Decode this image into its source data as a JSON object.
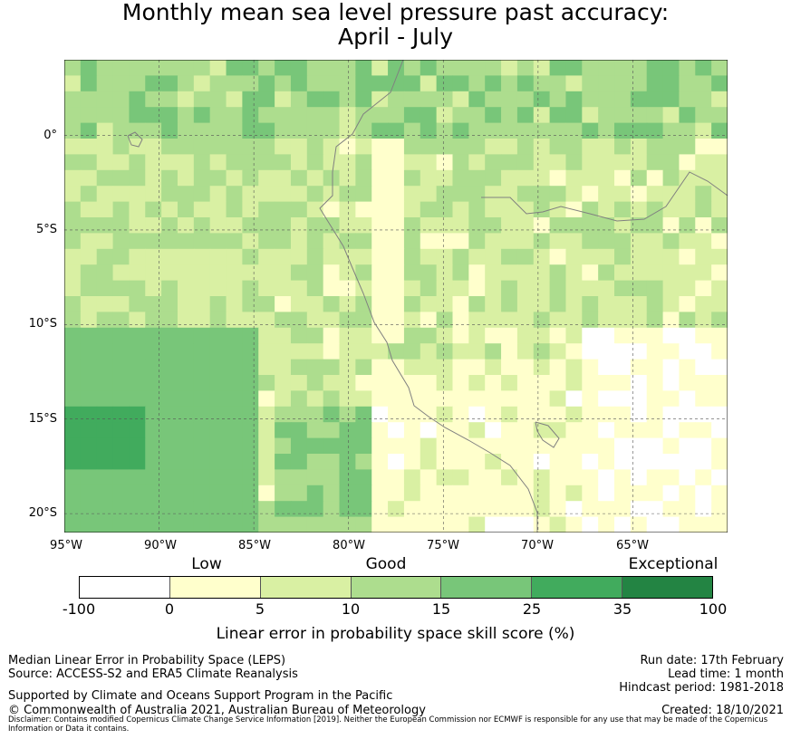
{
  "title_line_1": "Monthly mean sea level pressure past accuracy:",
  "title_line_2": "April - July",
  "map": {
    "lat_labels": [
      "0°",
      "5°S",
      "10°S",
      "15°S",
      "20°S"
    ],
    "lat_values": [
      0,
      -5,
      -10,
      -15,
      -20
    ],
    "lon_labels": [
      "95°W",
      "90°W",
      "85°W",
      "80°W",
      "75°W",
      "70°W",
      "65°W"
    ],
    "lon_values": [
      -95,
      -90,
      -85,
      -80,
      -75,
      -70,
      -65
    ],
    "extent": {
      "lon_min": -95,
      "lon_max": -60,
      "lat_min": -21,
      "lat_max": 4
    },
    "grid": "dashed",
    "coastline_color": "#808080"
  },
  "colorbar": {
    "categories": {
      "low": "Low",
      "good": "Good",
      "exceptional": "Exceptional"
    },
    "ticks": [
      "-100",
      "0",
      "5",
      "10",
      "15",
      "25",
      "35",
      "100"
    ],
    "colors": [
      "#ffffff",
      "#ffffcc",
      "#d9f0a3",
      "#addd8e",
      "#78c679",
      "#41ab5d",
      "#238443"
    ],
    "label": "Linear error in probability space skill score (%)"
  },
  "footer": {
    "left_line_1": "Median Linear Error in Probability Space (LEPS)",
    "left_line_2": "Source: ACCESS-S2 and ERA5 Climate Reanalysis",
    "left_line_3": "Supported by Climate and Oceans Support Program in the Pacific",
    "left_line_4": "© Commonwealth of Australia 2021, Australian Bureau of Meteorology",
    "right_line_1": "Run date: 17th February",
    "right_line_2": "Lead time: 1 month",
    "right_line_3": "Hindcast period: 1981-2018",
    "right_line_4": "Created: 18/10/2021",
    "disclaimer": "Disclaimer: Contains modified Copernicus Climate Change Service Information [2019]. Neither the European Commission nor ECMWF is responsible for any use that may be made of the Copernicus Information or Data it contains."
  }
}
